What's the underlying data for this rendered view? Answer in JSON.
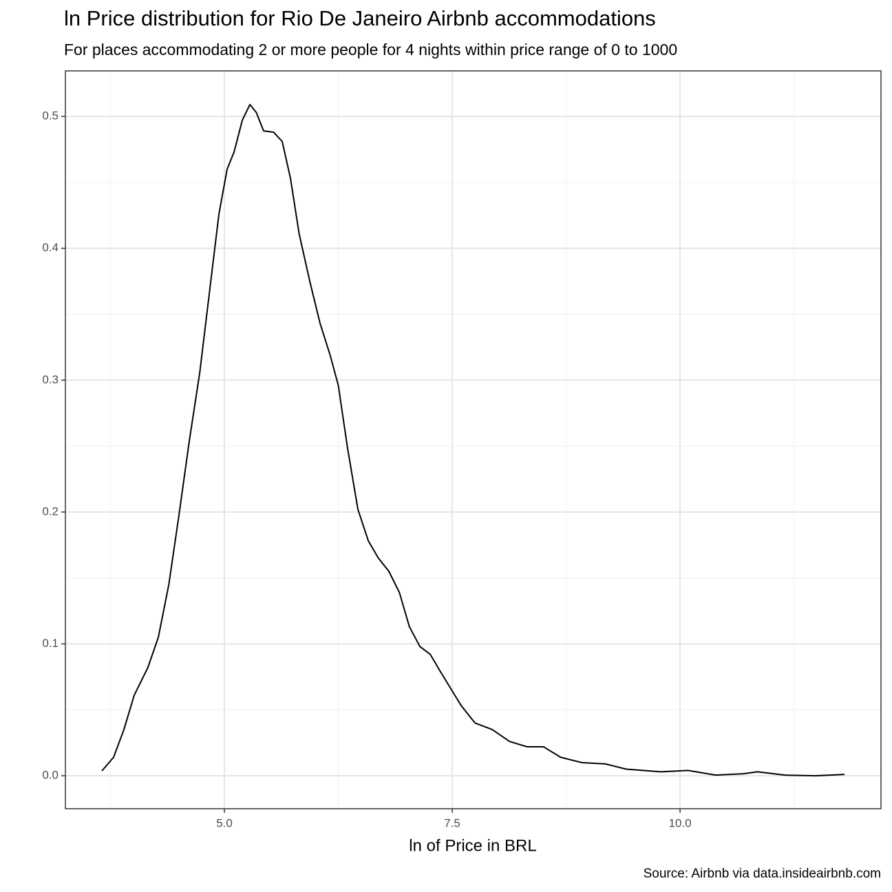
{
  "chart_data": {
    "type": "line",
    "title": "ln Price distribution for Rio De Janeiro Airbnb accommodations",
    "subtitle": "For places accommodating 2 or more people for 4 nights within price range of 0 to 1000",
    "x_label": "ln of Price in BRL",
    "caption": "Source: Airbnb via data.insideairbnb.com",
    "x": [
      3.656,
      3.784,
      3.897,
      4.01,
      4.16,
      4.275,
      4.39,
      4.5,
      4.615,
      4.73,
      4.84,
      4.94,
      5.03,
      5.106,
      5.196,
      5.28,
      5.35,
      5.43,
      5.54,
      5.634,
      5.725,
      5.82,
      5.94,
      6.05,
      6.16,
      6.25,
      6.35,
      6.465,
      6.58,
      6.69,
      6.805,
      6.92,
      7.03,
      7.145,
      7.26,
      7.37,
      7.485,
      7.6,
      7.75,
      7.94,
      8.13,
      8.32,
      8.5,
      8.69,
      8.92,
      9.18,
      9.41,
      9.79,
      10.09,
      10.39,
      10.69,
      10.85,
      11.15,
      11.49,
      11.805
    ],
    "series": [
      {
        "color": "#000000",
        "values": [
          0.0037,
          0.014,
          0.035,
          0.061,
          0.082,
          0.105,
          0.145,
          0.197,
          0.254,
          0.306,
          0.369,
          0.426,
          0.46,
          0.473,
          0.497,
          0.509,
          0.503,
          0.489,
          0.488,
          0.481,
          0.453,
          0.411,
          0.374,
          0.343,
          0.319,
          0.296,
          0.249,
          0.202,
          0.178,
          0.165,
          0.155,
          0.139,
          0.113,
          0.098,
          0.092,
          0.079,
          0.066,
          0.053,
          0.04,
          0.035,
          0.026,
          0.022,
          0.022,
          0.014,
          0.01,
          0.009,
          0.005,
          0.003,
          0.004,
          0.0005,
          0.0015,
          0.003,
          0.0005,
          0.0,
          0.001
        ]
      }
    ],
    "xlim": [
      3.255,
      12.205
    ],
    "xticks": [
      {
        "value": 5,
        "label": "5.0"
      },
      7.5,
      {
        "value": 10,
        "label": "10.0"
      }
    ],
    "ylim": [
      -0.025,
      0.5345
    ],
    "yticks": [
      {
        "value": 0,
        "label": "0.0"
      },
      0.1,
      0.2,
      0.3,
      0.4,
      0.5
    ],
    "grid": true
  }
}
